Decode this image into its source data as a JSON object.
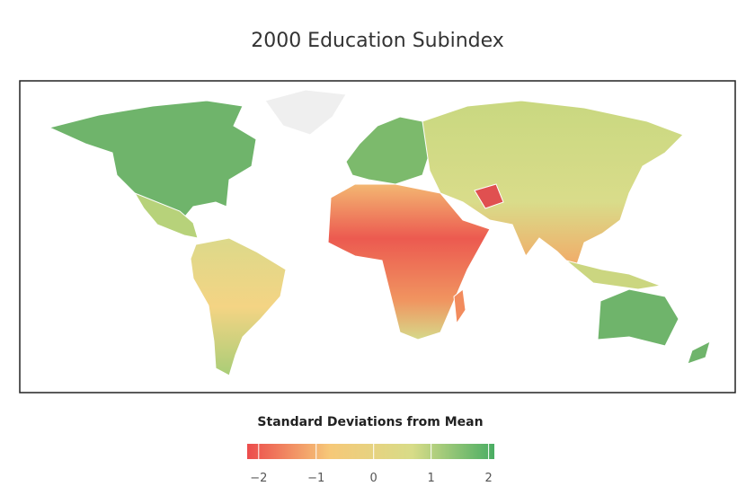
{
  "title": "2000 Education Subindex",
  "legend": {
    "title": "Standard Deviations from Mean",
    "range": [
      -2.2,
      2.1
    ],
    "colors": [
      "#ec4c4c",
      "#f6c878",
      "#d8dc88",
      "#4aad63"
    ],
    "ticks": [
      {
        "value": -2,
        "label": "−2"
      },
      {
        "value": -1,
        "label": "−1"
      },
      0,
      1,
      2
    ]
  }
}
